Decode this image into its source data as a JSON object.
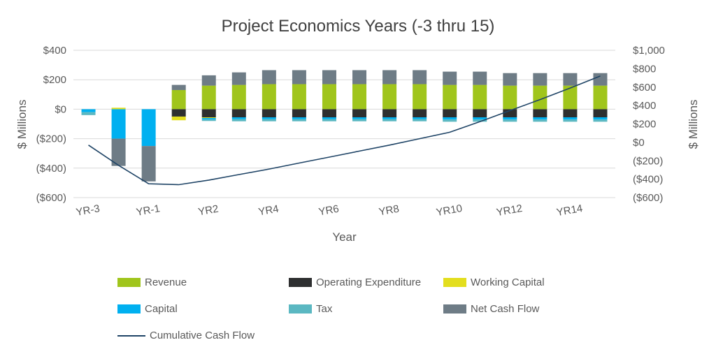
{
  "chart_data": {
    "type": "bar",
    "subtype": "stacked-bar-with-line",
    "title": "Project Economics Years (-3 thru 15)",
    "xlabel": "Year",
    "ylabel_left": "$ Millions",
    "ylabel_right": "$ Millions",
    "grid": true,
    "legend_position": "bottom",
    "colors": {
      "grid": "#D9D9D9",
      "text": "#595959",
      "title": "#404040"
    },
    "left_axis": {
      "min": -600,
      "max": 400,
      "tick_step": 200,
      "tick_labels": [
        "$400",
        "$200",
        "$0",
        "($200)",
        "($400)",
        "($600)"
      ]
    },
    "right_axis": {
      "min": -600,
      "max": 1000,
      "tick_step": 200,
      "tick_labels": [
        "$1,000",
        "$800",
        "$600",
        "$400",
        "$200",
        "$0",
        "($200)",
        "($400)",
        "($600)"
      ]
    },
    "categories": [
      "YR-3",
      "YR-2",
      "YR-1",
      "YR1",
      "YR2",
      "YR3",
      "YR4",
      "YR5",
      "YR6",
      "YR7",
      "YR8",
      "YR9",
      "YR10",
      "YR11",
      "YR12",
      "YR13",
      "YR14",
      "YR15"
    ],
    "x_tick_labels": [
      "YR-3",
      "YR-1",
      "YR2",
      "YR4",
      "YR6",
      "YR8",
      "YR10",
      "YR12",
      "YR14"
    ],
    "bar_series": [
      {
        "name": "Revenue",
        "color": "#A0C51C",
        "values": [
          0,
          0,
          0,
          130,
          160,
          165,
          170,
          170,
          170,
          170,
          170,
          170,
          165,
          165,
          160,
          160,
          160,
          160
        ]
      },
      {
        "name": "Operating Expenditure",
        "color": "#2E2F30",
        "values": [
          0,
          0,
          0,
          -50,
          -55,
          -55,
          -55,
          -55,
          -55,
          -55,
          -55,
          -55,
          -55,
          -55,
          -55,
          -55,
          -55,
          -55
        ]
      },
      {
        "name": "Working Capital",
        "color": "#E3DE1E",
        "values": [
          0,
          10,
          0,
          -25,
          -5,
          0,
          0,
          0,
          0,
          0,
          0,
          0,
          0,
          0,
          0,
          0,
          0,
          0
        ]
      },
      {
        "name": "Capital",
        "color": "#00B0F0",
        "values": [
          -20,
          -200,
          -250,
          0,
          -10,
          -12,
          -12,
          -12,
          -12,
          -12,
          -12,
          -12,
          -15,
          -15,
          -15,
          -15,
          -15,
          -15
        ]
      },
      {
        "name": "Tax",
        "color": "#5BB8C2",
        "values": [
          -20,
          0,
          0,
          0,
          -10,
          -15,
          -15,
          -15,
          -15,
          -15,
          -15,
          -15,
          -15,
          -15,
          -15,
          -15,
          -15,
          -15
        ]
      },
      {
        "name": "Net Cash Flow",
        "color": "#6E7C86",
        "values": [
          0,
          -185,
          -240,
          35,
          70,
          85,
          95,
          95,
          95,
          95,
          95,
          95,
          90,
          90,
          85,
          85,
          85,
          85
        ]
      }
    ],
    "line_series": {
      "name": "Cumulative Cash Flow",
      "color": "#1F4466",
      "axis": "right",
      "values": [
        -30,
        -250,
        -450,
        -460,
        -410,
        -350,
        -290,
        -225,
        -160,
        -95,
        -30,
        40,
        110,
        225,
        345,
        465,
        590,
        720
      ]
    }
  }
}
